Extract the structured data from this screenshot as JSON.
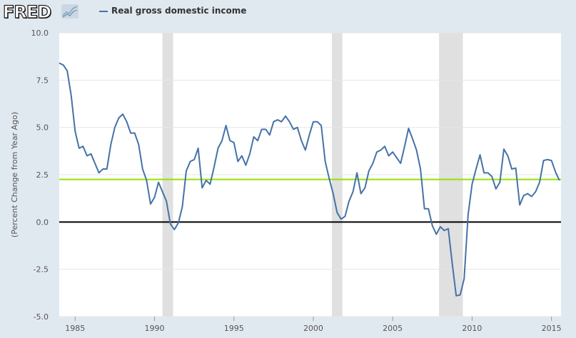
{
  "logo": {
    "text": "FRED"
  },
  "colors": {
    "background": "#e1e9f0",
    "plot": "#ffffff",
    "series": "#4572a7",
    "recession": "#e0e0e0",
    "reference": "#91e500",
    "zero": "#000000"
  },
  "chart_data": {
    "type": "line",
    "title": "",
    "xlabel": "",
    "ylabel": "(Percent Change from Year Ago)",
    "series": [
      {
        "name": "Real gross domestic income",
        "x": [
          1984.0,
          1984.25,
          1984.5,
          1984.75,
          1985.0,
          1985.25,
          1985.5,
          1985.75,
          1986.0,
          1986.25,
          1986.5,
          1986.75,
          1987.0,
          1987.25,
          1987.5,
          1987.75,
          1988.0,
          1988.25,
          1988.5,
          1988.75,
          1989.0,
          1989.25,
          1989.5,
          1989.75,
          1990.0,
          1990.25,
          1990.5,
          1990.75,
          1991.0,
          1991.25,
          1991.5,
          1991.75,
          1992.0,
          1992.25,
          1992.5,
          1992.75,
          1993.0,
          1993.25,
          1993.5,
          1993.75,
          1994.0,
          1994.25,
          1994.5,
          1994.75,
          1995.0,
          1995.25,
          1995.5,
          1995.75,
          1996.0,
          1996.25,
          1996.5,
          1996.75,
          1997.0,
          1997.25,
          1997.5,
          1997.75,
          1998.0,
          1998.25,
          1998.5,
          1998.75,
          1999.0,
          1999.25,
          1999.5,
          1999.75,
          2000.0,
          2000.25,
          2000.5,
          2000.75,
          2001.0,
          2001.25,
          2001.5,
          2001.75,
          2002.0,
          2002.25,
          2002.5,
          2002.75,
          2003.0,
          2003.25,
          2003.5,
          2003.75,
          2004.0,
          2004.25,
          2004.5,
          2004.75,
          2005.0,
          2005.25,
          2005.5,
          2005.75,
          2006.0,
          2006.25,
          2006.5,
          2006.75,
          2007.0,
          2007.25,
          2007.5,
          2007.75,
          2008.0,
          2008.25,
          2008.5,
          2008.75,
          2009.0,
          2009.25,
          2009.5,
          2009.75,
          2010.0,
          2010.25,
          2010.5,
          2010.75,
          2011.0,
          2011.25,
          2011.5,
          2011.75,
          2012.0,
          2012.25,
          2012.5,
          2012.75,
          2013.0,
          2013.25,
          2013.5,
          2013.75,
          2014.0,
          2014.25,
          2014.5,
          2014.75,
          2015.0,
          2015.25,
          2015.5
        ],
        "values": [
          8.4,
          8.3,
          8.0,
          6.7,
          4.8,
          3.9,
          4.0,
          3.5,
          3.6,
          3.1,
          2.6,
          2.8,
          2.8,
          4.1,
          5.0,
          5.5,
          5.7,
          5.3,
          4.7,
          4.7,
          4.1,
          2.8,
          2.2,
          0.95,
          1.3,
          2.1,
          1.6,
          1.1,
          -0.1,
          -0.4,
          -0.05,
          0.8,
          2.7,
          3.2,
          3.3,
          3.9,
          1.8,
          2.2,
          2.0,
          2.9,
          3.9,
          4.3,
          5.1,
          4.3,
          4.2,
          3.2,
          3.5,
          3.0,
          3.6,
          4.5,
          4.3,
          4.9,
          4.9,
          4.6,
          5.3,
          5.4,
          5.3,
          5.6,
          5.3,
          4.9,
          5.0,
          4.3,
          3.8,
          4.6,
          5.3,
          5.3,
          5.1,
          3.2,
          2.3,
          1.5,
          0.5,
          0.15,
          0.3,
          1.1,
          1.6,
          2.6,
          1.5,
          1.8,
          2.7,
          3.1,
          3.7,
          3.8,
          4.0,
          3.5,
          3.7,
          3.4,
          3.1,
          4.0,
          4.95,
          4.4,
          3.8,
          2.8,
          0.7,
          0.7,
          -0.2,
          -0.65,
          -0.25,
          -0.45,
          -0.35,
          -2.2,
          -3.9,
          -3.85,
          -3.0,
          0.4,
          2.0,
          2.8,
          3.55,
          2.6,
          2.6,
          2.4,
          1.75,
          2.1,
          3.85,
          3.5,
          2.8,
          2.85,
          0.9,
          1.4,
          1.5,
          1.35,
          1.6,
          2.1,
          3.25,
          3.3,
          3.25,
          2.65,
          2.2
        ]
      }
    ],
    "reference_line": 2.25,
    "recessions": [
      [
        1990.5,
        1991.17
      ],
      [
        2001.17,
        2001.83
      ],
      [
        2007.92,
        2009.42
      ]
    ],
    "xlim": [
      1984.0,
      2015.6
    ],
    "ylim": [
      -5.0,
      10.0
    ],
    "yticks": [
      -5.0,
      -2.5,
      0.0,
      2.5,
      5.0,
      7.5,
      10.0
    ],
    "ytick_labels": [
      "-5.0",
      "-2.5",
      "0.0",
      "2.5",
      "5.0",
      "7.5",
      "10.0"
    ],
    "xticks": [
      1985,
      1990,
      1995,
      2000,
      2005,
      2010,
      2015
    ],
    "xtick_labels": [
      "1985",
      "1990",
      "1995",
      "2000",
      "2005",
      "2010",
      "2015"
    ],
    "grid": true,
    "legend": "top-left"
  }
}
